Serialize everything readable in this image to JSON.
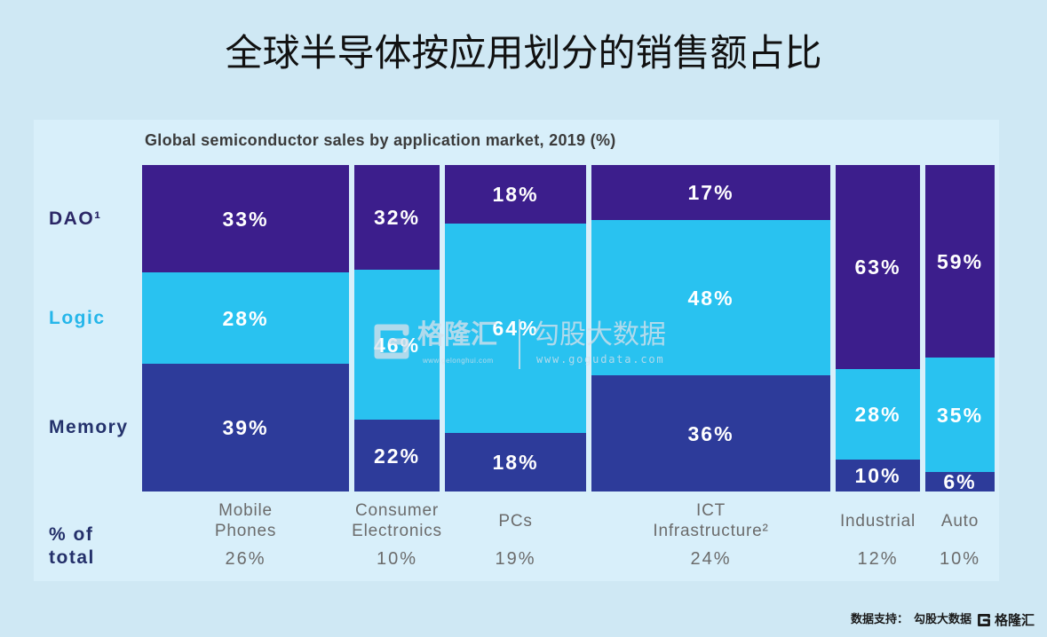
{
  "title": "全球半导体按应用划分的销售额占比",
  "chart_data": {
    "type": "bar",
    "stacked": true,
    "legend": "left",
    "title": "Global semiconductor sales by application market, 2019 (%)",
    "unit": "%",
    "categories": [
      "Mobile Phones",
      "Consumer Electronics",
      "PCs",
      "ICT Infrastructure²",
      "Industrial",
      "Auto"
    ],
    "series": [
      {
        "name": "DAO¹",
        "color": "#3c1e8c",
        "values": [
          33,
          32,
          18,
          17,
          63,
          59
        ]
      },
      {
        "name": "Logic",
        "color": "#29c2f0",
        "values": [
          28,
          46,
          64,
          48,
          28,
          35
        ]
      },
      {
        "name": "Memory",
        "color": "#2d3b9a",
        "values": [
          39,
          22,
          18,
          36,
          10,
          6
        ]
      }
    ],
    "share_label": "% of total",
    "share_of_total": [
      26,
      10,
      19,
      24,
      12,
      10
    ]
  },
  "watermark": {
    "brand": "格隆汇",
    "brand_site": "www.gelonghui.com",
    "partner": "勾股大数据",
    "partner_site": "www.gogudata.com"
  },
  "footer": {
    "source_label": "数据支持：",
    "source": "勾股大数据",
    "logo_text": "格隆汇"
  }
}
